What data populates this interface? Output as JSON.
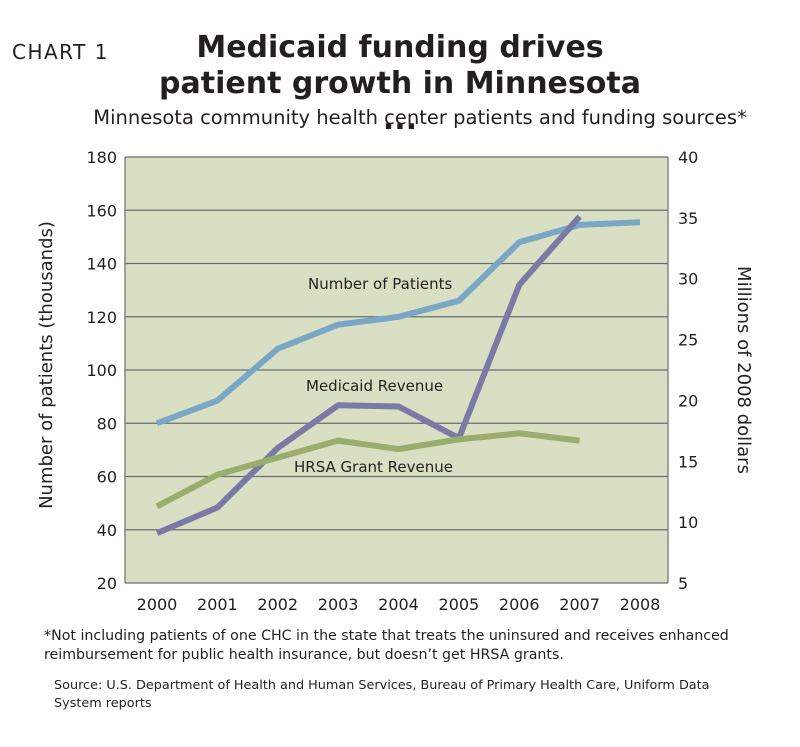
{
  "header": {
    "chart_label": "CHART 1",
    "title_line1": "Medicaid funding drives",
    "title_line2": "patient growth in Minnesota ...",
    "subtitle": "Minnesota community health center patients and funding sources*"
  },
  "footnote": "*Not including patients of one CHC in the state that treats the uninsured and receives enhanced reimbursement for public health insurance, but doesn’t get HRSA grants.",
  "source": "Source: U.S. Department of Health and Human Services, Bureau of Primary Health Care, Uniform Data System reports",
  "colors": {
    "plot_background": "#d9dfc3",
    "gridline": "#6d6e71",
    "patients": "#7ba7c7",
    "medicaid": "#7a7aa6",
    "hrsa": "#99ad6d"
  },
  "chart_data": {
    "type": "line",
    "title": "Medicaid funding drives patient growth in Minnesota ...",
    "subtitle": "Minnesota community health center patients and funding sources*",
    "x": [
      2000,
      2001,
      2002,
      2003,
      2004,
      2005,
      2006,
      2007,
      2008
    ],
    "xlabels": [
      "2000",
      "2001",
      "2002",
      "2003",
      "2004",
      "2005",
      "2006",
      "2007",
      "2008"
    ],
    "ylabel": "Number of patients (thousands)",
    "ylim": [
      20,
      180
    ],
    "yticks": [
      "20",
      "40",
      "60",
      "80",
      "100",
      "120",
      "140",
      "160",
      "180"
    ],
    "y2label": "Millions of 2008 dollars",
    "y2lim": [
      5,
      40
    ],
    "y2ticks": [
      "5",
      "10",
      "15",
      "20",
      "25",
      "30",
      "35",
      "40"
    ],
    "grid": true,
    "series": [
      {
        "name": "Number of Patients",
        "axis": "left",
        "values": [
          80,
          88.5,
          108,
          117,
          120,
          126,
          148,
          154.5,
          155.5
        ]
      },
      {
        "name": "Medicaid Revenue",
        "axis": "right",
        "values": [
          9.1,
          11.2,
          16.1,
          19.6,
          19.5,
          16.9,
          29.5,
          35.1,
          null
        ]
      },
      {
        "name": "HRSA Grant Revenue",
        "axis": "right",
        "values": [
          11.3,
          13.9,
          15.3,
          16.7,
          16.0,
          16.8,
          17.3,
          16.7,
          null
        ]
      }
    ]
  }
}
